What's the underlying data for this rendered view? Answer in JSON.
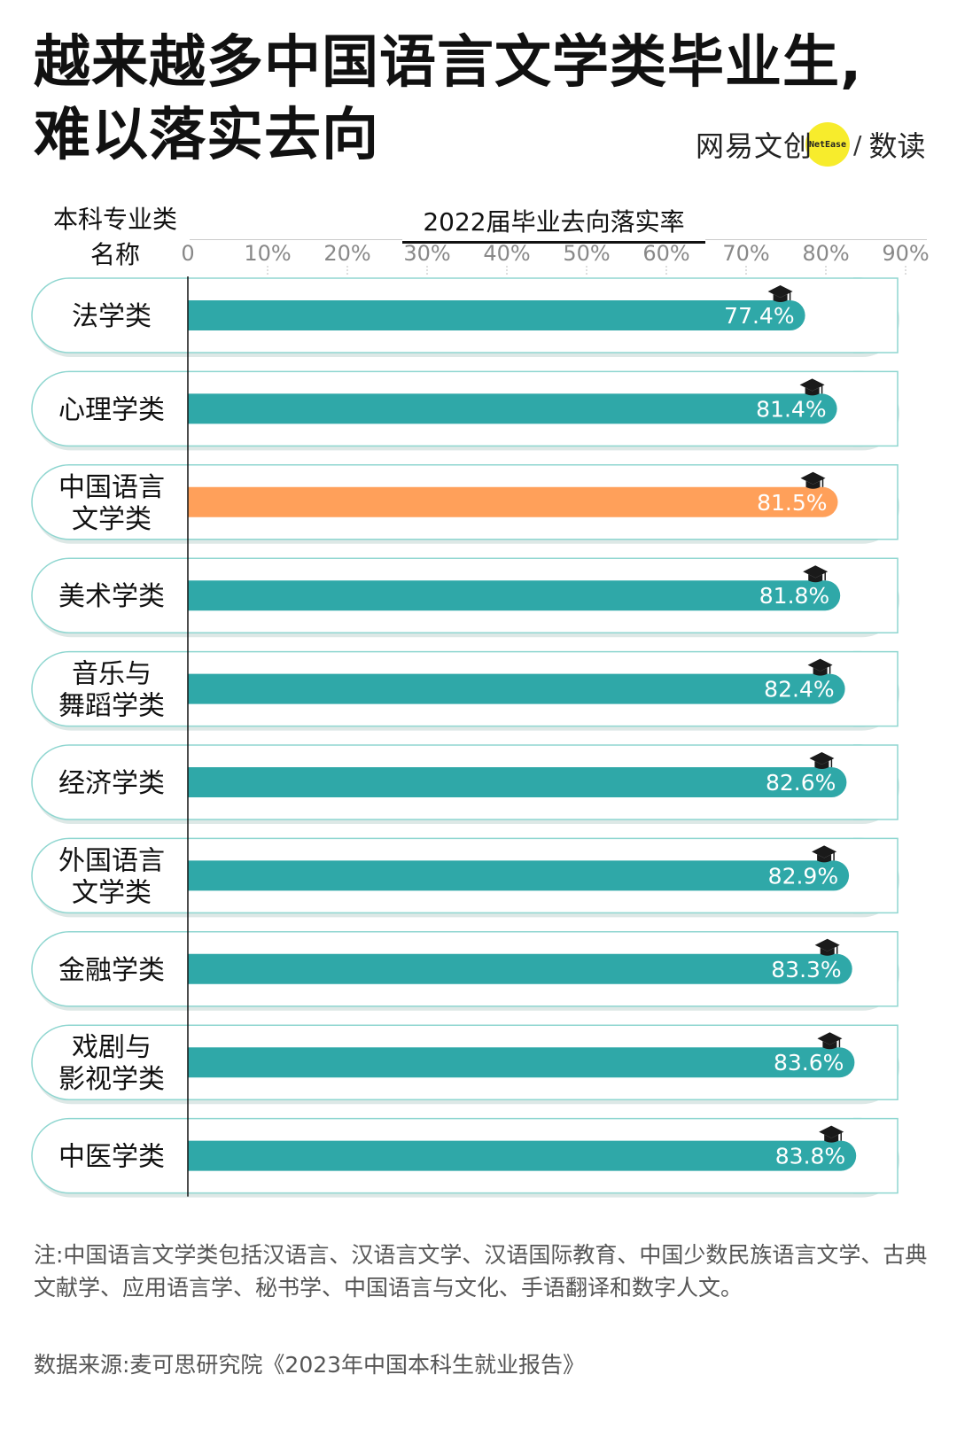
{
  "header": {
    "title_lines": [
      "越来越多中国语言文学类毕业生,",
      "难以落实去向"
    ],
    "brand_name": "网易文创",
    "brand_badge": "NetEase",
    "brand_slash": "/",
    "brand_sub": "数读"
  },
  "chart_data": {
    "type": "bar",
    "orientation": "horizontal",
    "category_header_lines": [
      "本科专业类",
      "名称"
    ],
    "value_header": "2022届毕业去向落实率",
    "x_ticks": [
      "0",
      "10%",
      "20%",
      "30%",
      "40%",
      "50%",
      "60%",
      "70%",
      "80%",
      "90%"
    ],
    "xlim": [
      0,
      90
    ],
    "categories": [
      [
        "法学类"
      ],
      [
        "心理学类"
      ],
      [
        "中国语言",
        "文学类"
      ],
      [
        "美术学类"
      ],
      [
        "音乐与",
        "舞蹈学类"
      ],
      [
        "经济学类"
      ],
      [
        "外国语言",
        "文学类"
      ],
      [
        "金融学类"
      ],
      [
        "戏剧与",
        "影视学类"
      ],
      [
        "中医学类"
      ]
    ],
    "values": [
      77.4,
      81.4,
      81.5,
      81.8,
      82.4,
      82.6,
      82.9,
      83.3,
      83.6,
      83.8
    ],
    "value_labels": [
      "77.4%",
      "81.4%",
      "81.5%",
      "81.8%",
      "82.4%",
      "82.6%",
      "82.9%",
      "83.3%",
      "83.6%",
      "83.8%"
    ],
    "highlight_index": 2,
    "colors": {
      "bar": "#2fa8a8",
      "highlight": "#ffa05a",
      "row_border": "#8fd6d0",
      "row_shadow": "#dde8e6",
      "axis": "#111111",
      "grid": "#bdbdbd"
    },
    "icon": "graduation-cap-icon"
  },
  "footer": {
    "note": "注:中国语言文学类包括汉语言、汉语言文学、汉语国际教育、中国少数民族语言文学、古典文献学、应用语言学、秘书学、中国语言与文化、手语翻译和数字人文。",
    "source": "数据来源:麦可思研究院《2023年中国本科生就业报告》"
  }
}
